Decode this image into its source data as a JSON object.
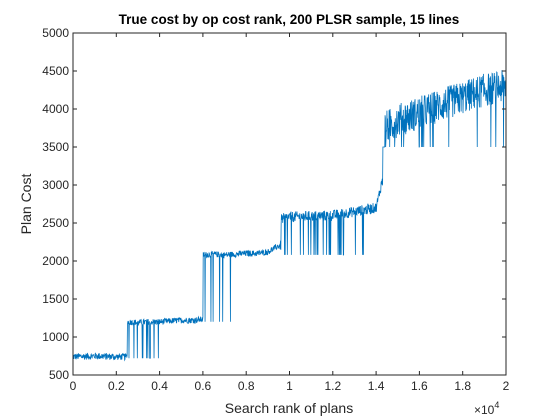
{
  "chart_data": {
    "type": "line",
    "title": "True cost by op cost rank, 200 PLSR sample, 15 lines",
    "xlabel": "Search rank of plans",
    "ylabel": "Plan Cost",
    "x_exponent_label": "×10",
    "x_exponent_power": "4",
    "xlim": [
      0,
      20000
    ],
    "ylim": [
      500,
      5000
    ],
    "x_ticks": [
      0,
      2000,
      4000,
      6000,
      8000,
      10000,
      12000,
      14000,
      16000,
      18000,
      20000
    ],
    "x_tick_labels": [
      "0",
      "0.2",
      "0.4",
      "0.6",
      "0.8",
      "1",
      "1.2",
      "1.4",
      "1.6",
      "1.8",
      "2"
    ],
    "y_ticks": [
      500,
      1000,
      1500,
      2000,
      2500,
      3000,
      3500,
      4000,
      4500,
      5000
    ],
    "y_tick_labels": [
      "500",
      "1000",
      "1500",
      "2000",
      "2500",
      "3000",
      "3500",
      "4000",
      "4500",
      "5000"
    ],
    "grid": false,
    "line_color": "#0072BD",
    "series": [
      {
        "x": [
          0,
          1000,
          2000,
          2400,
          2500,
          3000,
          3500,
          4000,
          4500,
          5000,
          5500,
          5900,
          6000,
          6500,
          7000,
          7500,
          8000,
          8500,
          9000,
          9500,
          9600,
          10000,
          11000,
          12000,
          13000,
          14000,
          14200,
          14300,
          14400,
          15000,
          16000,
          17000,
          18000,
          19000,
          20000
        ],
        "values": [
          740,
          750,
          740,
          740,
          1200,
          1190,
          1200,
          1200,
          1210,
          1220,
          1220,
          1230,
          2080,
          2090,
          2080,
          2090,
          2100,
          2100,
          2120,
          2200,
          2550,
          2580,
          2590,
          2600,
          2650,
          2700,
          2950,
          3100,
          3750,
          3850,
          3950,
          4050,
          4150,
          4250,
          4300
        ]
      }
    ]
  }
}
